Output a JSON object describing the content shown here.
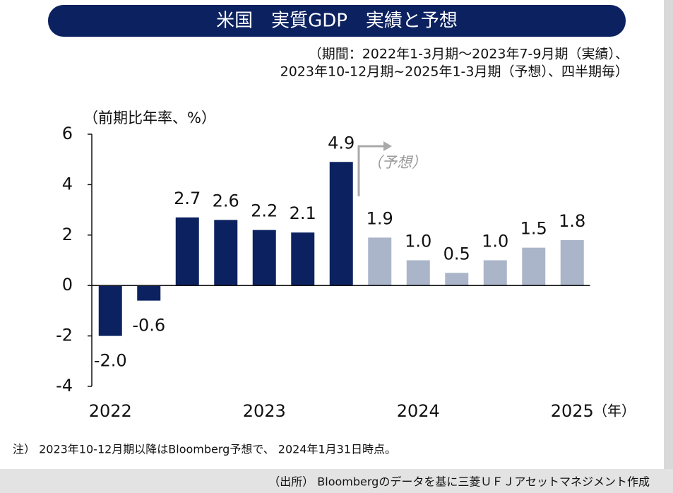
{
  "chart_data": {
    "type": "bar",
    "title": "米国　実質GDP　実績と予想",
    "subtitle": [
      "（期間：2022年1-3月期〜2023年7-9月期（実績）、",
      "2023年10-12月期~2025年1-3月期（予想）、四半期毎）"
    ],
    "y_axis_label": "（前期比年率、%）",
    "x_axis_label": "（年）",
    "annotation": "（予想）",
    "note": "注）  2023年10-12月期以降はBloomberg予想で、 2024年1月31日時点。",
    "source": "（出所） Bloombergのデータを基に三菱ＵＦＪアセットマネジメント作成",
    "categories": [
      "2022",
      null,
      null,
      null,
      "2023",
      null,
      null,
      null,
      "2024",
      null,
      null,
      null,
      "2025"
    ],
    "values": [
      -2.0,
      -0.6,
      2.7,
      2.6,
      2.2,
      2.1,
      4.9,
      1.9,
      1.0,
      0.5,
      1.0,
      1.5,
      1.8
    ],
    "value_labels": [
      "-2.0",
      "-0.6",
      "2.7",
      "2.6",
      "2.2",
      "2.1",
      "4.9",
      "1.9",
      "1.0",
      "0.5",
      "1.0",
      "1.5",
      "1.8"
    ],
    "colors": [
      "#0b2160",
      "#0b2160",
      "#0b2160",
      "#0b2160",
      "#0b2160",
      "#0b2160",
      "#0b2160",
      "#aab5c9",
      "#aab5c9",
      "#aab5c9",
      "#aab5c9",
      "#aab5c9",
      "#aab5c9"
    ],
    "ylim": [
      -4,
      6
    ],
    "yticks": [
      -4,
      -2,
      0,
      2,
      4,
      6
    ],
    "grid": false
  }
}
